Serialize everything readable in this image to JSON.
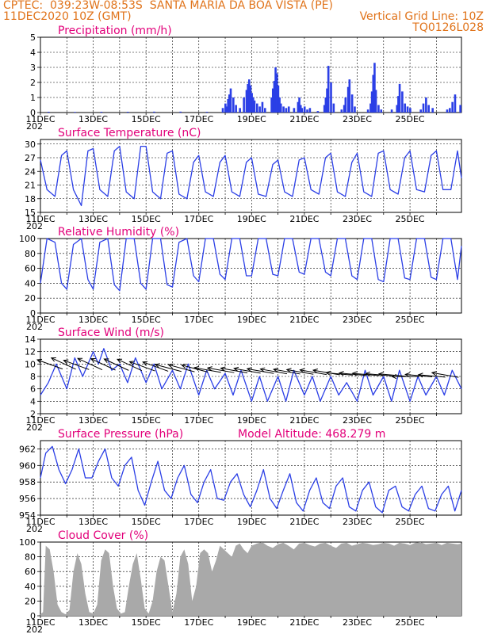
{
  "header": {
    "line1": "CPTEC:  039:23W-08:53S  SANTA MARIA DA BOA VISTA (PE)",
    "line2_left": "11DEC2020 10Z (GMT)",
    "line2_right": "Vertical Grid Line: 10Z",
    "line3_right": "TQ0126L028"
  },
  "x_axis": {
    "labels": [
      "11DEC",
      "13DEC",
      "15DEC",
      "17DEC",
      "19DEC",
      "21DEC",
      "23DEC",
      "25DEC"
    ],
    "year_fragment": "202"
  },
  "colors": {
    "line": "#2b3fe6",
    "cloud": "#a9a9a9",
    "title": "#e2007a",
    "header": "#e0731a"
  },
  "chart_data": [
    {
      "type": "bar",
      "title": "Precipitation (mm/h)",
      "ylim": [
        0,
        5
      ],
      "yticks": [
        0,
        1,
        2,
        3,
        4,
        5
      ],
      "x_unit": "days since 11DEC2020 10Z",
      "x": [
        0.3,
        1.3,
        2.3,
        3.3,
        4.3,
        5.3,
        6.3,
        6.9,
        7.0,
        7.05,
        7.1,
        7.15,
        7.2,
        7.3,
        7.4,
        7.55,
        7.7,
        7.8,
        7.85,
        7.9,
        7.95,
        8.0,
        8.05,
        8.1,
        8.2,
        8.3,
        8.4,
        8.5,
        8.75,
        8.8,
        8.85,
        8.9,
        8.95,
        9.0,
        9.05,
        9.1,
        9.2,
        9.3,
        9.4,
        9.6,
        9.75,
        9.8,
        9.85,
        9.9,
        10.0,
        10.1,
        10.2,
        10.5,
        10.75,
        10.8,
        10.85,
        10.9,
        11.0,
        11.1,
        11.4,
        11.5,
        11.55,
        11.65,
        11.7,
        11.8,
        11.9,
        12.4,
        12.5,
        12.55,
        12.6,
        12.65,
        12.7,
        12.8,
        12.9,
        13.3,
        13.5,
        13.55,
        13.6,
        13.7,
        13.8,
        13.9,
        14.0,
        14.4,
        14.5,
        14.6,
        14.7,
        14.85,
        15.4,
        15.5,
        15.6,
        15.7,
        15.9
      ],
      "values": [
        0.05,
        0.04,
        0.05,
        0.05,
        0.06,
        0.06,
        0.05,
        0.3,
        0.6,
        0.4,
        0.9,
        1.2,
        1.6,
        1.0,
        0.5,
        0.3,
        1.0,
        1.5,
        1.9,
        2.2,
        1.8,
        1.3,
        1.0,
        0.8,
        0.6,
        0.4,
        0.7,
        0.3,
        1.0,
        1.6,
        2.1,
        3.0,
        2.6,
        1.8,
        1.0,
        0.6,
        0.4,
        0.3,
        0.4,
        0.3,
        0.7,
        1.0,
        0.5,
        0.3,
        0.4,
        0.2,
        0.3,
        0.1,
        0.5,
        1.0,
        1.6,
        3.1,
        2.0,
        0.6,
        0.2,
        0.5,
        1.0,
        1.7,
        2.2,
        1.2,
        0.4,
        0.2,
        0.6,
        1.4,
        2.5,
        3.3,
        1.5,
        0.5,
        0.2,
        0.2,
        0.5,
        1.1,
        1.9,
        1.4,
        0.6,
        0.4,
        0.3,
        0.2,
        0.6,
        1.0,
        0.5,
        0.3,
        0.2,
        0.3,
        0.7,
        1.2,
        0.5
      ]
    },
    {
      "type": "line",
      "title": "Surface Temperature (nC)",
      "ylim": [
        15,
        31
      ],
      "yticks": [
        15,
        18,
        21,
        24,
        27,
        30
      ],
      "x_unit": "days since 11DEC2020 10Z",
      "x": [
        0,
        0.25,
        0.55,
        0.8,
        1.0,
        1.25,
        1.55,
        1.8,
        2.0,
        2.25,
        2.55,
        2.8,
        3.0,
        3.25,
        3.55,
        3.8,
        4.0,
        4.25,
        4.55,
        4.8,
        5.0,
        5.25,
        5.55,
        5.8,
        6.0,
        6.25,
        6.55,
        6.8,
        7.0,
        7.25,
        7.55,
        7.8,
        8.0,
        8.25,
        8.55,
        8.8,
        9.0,
        9.25,
        9.55,
        9.8,
        10.0,
        10.25,
        10.55,
        10.8,
        11.0,
        11.25,
        11.55,
        11.8,
        12.0,
        12.25,
        12.55,
        12.8,
        13.0,
        13.25,
        13.55,
        13.8,
        14.0,
        14.25,
        14.55,
        14.8,
        15.0,
        15.25,
        15.55,
        15.8,
        15.95
      ],
      "values": [
        26.5,
        20.0,
        18.5,
        27.5,
        28.5,
        20.0,
        16.5,
        28.5,
        29.0,
        20.0,
        18.5,
        28.5,
        29.5,
        19.5,
        18.0,
        29.5,
        29.5,
        19.5,
        18.0,
        28.0,
        28.5,
        19.0,
        18.0,
        26.0,
        27.5,
        19.5,
        18.5,
        26.0,
        27.5,
        19.5,
        18.5,
        26.0,
        27.0,
        19.0,
        18.5,
        25.5,
        26.5,
        19.5,
        18.5,
        26.5,
        27.0,
        20.0,
        19.0,
        27.0,
        28.0,
        19.5,
        18.5,
        26.0,
        28.0,
        19.5,
        18.5,
        28.0,
        28.5,
        20.0,
        19.0,
        27.0,
        28.5,
        20.0,
        19.5,
        27.5,
        28.5,
        20.0,
        20.0,
        28.5,
        22.5
      ]
    },
    {
      "type": "line",
      "title": "Relative Humidity (%)",
      "ylim": [
        0,
        100
      ],
      "yticks": [
        0,
        20,
        40,
        60,
        80,
        100
      ],
      "x_unit": "days since 11DEC2020 10Z",
      "x": [
        0,
        0.25,
        0.55,
        0.8,
        1.0,
        1.25,
        1.55,
        1.8,
        2.0,
        2.25,
        2.55,
        2.8,
        3.0,
        3.25,
        3.55,
        3.8,
        4.0,
        4.25,
        4.55,
        4.8,
        5.0,
        5.25,
        5.55,
        5.8,
        6.0,
        6.25,
        6.55,
        6.8,
        7.0,
        7.25,
        7.55,
        7.8,
        8.0,
        8.25,
        8.55,
        8.8,
        9.0,
        9.25,
        9.55,
        9.8,
        10.0,
        10.25,
        10.55,
        10.8,
        11.0,
        11.25,
        11.55,
        11.8,
        12.0,
        12.25,
        12.55,
        12.8,
        13.0,
        13.25,
        13.55,
        13.8,
        14.0,
        14.25,
        14.55,
        14.8,
        15.0,
        15.25,
        15.55,
        15.8,
        15.95
      ],
      "values": [
        40,
        100,
        95,
        40,
        32,
        92,
        100,
        45,
        32,
        95,
        100,
        38,
        30,
        100,
        100,
        40,
        32,
        100,
        100,
        38,
        35,
        95,
        100,
        50,
        42,
        100,
        100,
        52,
        45,
        100,
        100,
        50,
        50,
        100,
        100,
        52,
        50,
        100,
        100,
        55,
        52,
        100,
        100,
        55,
        50,
        100,
        100,
        50,
        45,
        100,
        100,
        45,
        42,
        100,
        100,
        47,
        45,
        100,
        100,
        48,
        45,
        100,
        100,
        45,
        90
      ]
    },
    {
      "type": "line",
      "title": "Surface Wind (m/s)",
      "ylim": [
        2,
        14
      ],
      "yticks": [
        2,
        4,
        6,
        8,
        10,
        12,
        14
      ],
      "x_unit": "days since 11DEC2020 10Z",
      "x": [
        0,
        0.3,
        0.6,
        1.0,
        1.3,
        1.6,
        2.0,
        2.2,
        2.4,
        2.7,
        3.0,
        3.3,
        3.6,
        4.0,
        4.3,
        4.6,
        5.0,
        5.3,
        5.6,
        6.0,
        6.3,
        6.6,
        7.0,
        7.3,
        7.6,
        8.0,
        8.3,
        8.6,
        9.0,
        9.3,
        9.6,
        10.0,
        10.3,
        10.6,
        11.0,
        11.3,
        11.6,
        12.0,
        12.3,
        12.6,
        13.0,
        13.3,
        13.6,
        14.0,
        14.3,
        14.6,
        15.0,
        15.3,
        15.6,
        15.95
      ],
      "values": [
        5,
        7,
        10,
        6,
        11,
        8,
        12,
        10,
        12.5,
        9,
        10,
        7,
        11,
        7,
        10,
        6,
        9,
        6,
        10,
        5,
        9,
        6,
        8.5,
        5,
        9,
        4,
        8,
        4,
        8,
        4,
        9,
        5,
        8,
        4,
        8,
        5,
        7,
        4,
        9,
        5,
        8,
        4,
        9,
        4,
        8,
        5,
        8,
        5,
        9,
        6
      ],
      "vectors_x": [
        0.3,
        0.8,
        1.3,
        1.8,
        2.3,
        2.8,
        3.3,
        3.8,
        4.3,
        4.8,
        5.3,
        5.8,
        6.3,
        6.8,
        7.3,
        7.8,
        8.3,
        8.8,
        9.3,
        9.8,
        10.3,
        10.8,
        11.3,
        11.8,
        12.3,
        12.8,
        13.3,
        13.8,
        14.3,
        14.8,
        15.3
      ],
      "vectors_dir_deg": [
        160,
        155,
        160,
        155,
        155,
        155,
        155,
        160,
        160,
        165,
        165,
        165,
        170,
        170,
        170,
        170,
        170,
        170,
        170,
        170,
        170,
        170,
        175,
        175,
        175,
        175,
        175,
        180,
        175,
        175,
        170
      ]
    },
    {
      "type": "line",
      "title": "Surface Pressure (hPa)",
      "subtitle": "Model Altitude: 468.279 m",
      "ylim": [
        954,
        963
      ],
      "yticks": [
        954,
        956,
        958,
        960,
        962
      ],
      "x_unit": "days since 11DEC2020 10Z",
      "x": [
        0,
        0.2,
        0.45,
        0.7,
        0.95,
        1.2,
        1.45,
        1.7,
        1.95,
        2.2,
        2.45,
        2.7,
        2.95,
        3.2,
        3.45,
        3.7,
        3.95,
        4.2,
        4.45,
        4.7,
        4.95,
        5.2,
        5.45,
        5.7,
        5.95,
        6.2,
        6.45,
        6.7,
        6.95,
        7.2,
        7.45,
        7.7,
        7.95,
        8.2,
        8.45,
        8.7,
        8.95,
        9.2,
        9.45,
        9.7,
        9.95,
        10.2,
        10.45,
        10.7,
        10.95,
        11.2,
        11.45,
        11.7,
        11.95,
        12.2,
        12.45,
        12.7,
        12.95,
        13.2,
        13.45,
        13.7,
        13.95,
        14.2,
        14.45,
        14.7,
        14.95,
        15.2,
        15.45,
        15.7,
        15.95
      ],
      "values": [
        958.5,
        961.5,
        962.3,
        959.5,
        957.8,
        959.5,
        962.0,
        958.5,
        958.5,
        960.5,
        962.0,
        958.5,
        957.5,
        960.0,
        961.0,
        957.0,
        955.2,
        958.0,
        960.5,
        957.0,
        956.0,
        958.5,
        960.0,
        956.5,
        955.5,
        958.0,
        959.5,
        956.0,
        955.8,
        958.0,
        959.0,
        956.5,
        955.0,
        957.0,
        959.5,
        956.0,
        954.8,
        957.0,
        959.0,
        955.5,
        954.5,
        957.0,
        958.5,
        955.5,
        954.8,
        957.5,
        958.5,
        955.0,
        954.5,
        957.0,
        958.0,
        955.0,
        954.3,
        957.0,
        957.5,
        955.0,
        954.5,
        956.5,
        957.5,
        954.8,
        954.5,
        956.5,
        957.5,
        954.5,
        957.0
      ]
    },
    {
      "type": "area",
      "title": "Cloud Cover (%)",
      "ylim": [
        0,
        100
      ],
      "yticks": [
        0,
        20,
        40,
        60,
        80,
        100
      ],
      "x_unit": "days since 11DEC2020 10Z",
      "x": [
        0,
        0.1,
        0.2,
        0.35,
        0.5,
        0.65,
        0.8,
        0.95,
        1.1,
        1.25,
        1.4,
        1.55,
        1.7,
        1.85,
        2.0,
        2.15,
        2.3,
        2.45,
        2.6,
        2.75,
        2.9,
        3.05,
        3.2,
        3.35,
        3.5,
        3.65,
        3.8,
        3.95,
        4.1,
        4.25,
        4.4,
        4.55,
        4.7,
        4.85,
        5.0,
        5.15,
        5.3,
        5.45,
        5.6,
        5.75,
        5.9,
        6.05,
        6.2,
        6.35,
        6.5,
        6.65,
        6.8,
        6.95,
        7.1,
        7.25,
        7.4,
        7.55,
        7.7,
        7.85,
        8.0,
        8.2,
        8.4,
        8.6,
        8.8,
        9.0,
        9.2,
        9.4,
        9.6,
        9.8,
        10.0,
        10.2,
        10.4,
        10.6,
        10.8,
        11.0,
        11.2,
        11.4,
        11.6,
        11.8,
        12.0,
        12.2,
        12.4,
        12.6,
        12.8,
        13.0,
        13.2,
        13.4,
        13.6,
        13.8,
        14.0,
        14.2,
        14.4,
        14.6,
        14.8,
        15.0,
        15.2,
        15.4,
        15.6,
        15.8,
        15.95
      ],
      "values": [
        2,
        5,
        95,
        90,
        60,
        15,
        5,
        2,
        8,
        60,
        85,
        70,
        30,
        5,
        3,
        15,
        75,
        90,
        85,
        40,
        10,
        3,
        5,
        40,
        70,
        85,
        50,
        10,
        3,
        20,
        60,
        80,
        75,
        40,
        5,
        30,
        80,
        90,
        70,
        20,
        40,
        85,
        90,
        85,
        60,
        75,
        95,
        90,
        85,
        80,
        95,
        98,
        90,
        85,
        95,
        98,
        100,
        95,
        92,
        97,
        99,
        95,
        90,
        98,
        99,
        96,
        94,
        98,
        99,
        95,
        92,
        98,
        99,
        95,
        97,
        99,
        98,
        96,
        97,
        99,
        98,
        95,
        99,
        98,
        96,
        99,
        100,
        97,
        98,
        99,
        96,
        99,
        98,
        97,
        98
      ]
    }
  ]
}
